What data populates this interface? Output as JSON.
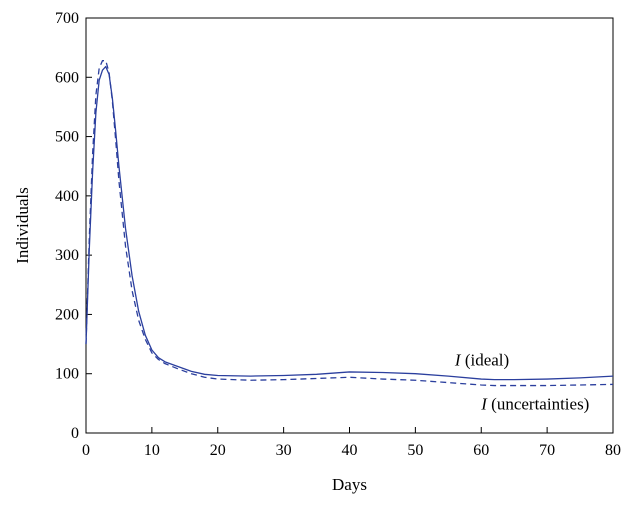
{
  "chart_data": {
    "type": "line",
    "title": "",
    "xlabel": "Days",
    "ylabel": "Individuals",
    "xlim": [
      0,
      80
    ],
    "ylim": [
      0,
      700
    ],
    "xticks": [
      0,
      10,
      20,
      30,
      40,
      50,
      60,
      70,
      80
    ],
    "yticks": [
      0,
      100,
      200,
      300,
      400,
      500,
      600,
      700
    ],
    "grid": false,
    "legend": "none",
    "series": [
      {
        "name": "I (ideal)",
        "style": "solid",
        "color": "#2b3f9e",
        "x": [
          0,
          0.5,
          1,
          1.5,
          2,
          2.5,
          3,
          3.5,
          4,
          4.5,
          5,
          6,
          7,
          8,
          9,
          10,
          11,
          12,
          14,
          16,
          18,
          20,
          25,
          30,
          35,
          40,
          45,
          50,
          55,
          60,
          62,
          65,
          70,
          75,
          80
        ],
        "y": [
          150,
          310,
          440,
          540,
          595,
          612,
          618,
          605,
          565,
          510,
          450,
          345,
          265,
          205,
          165,
          140,
          127,
          120,
          112,
          104,
          99,
          97,
          96,
          97,
          99,
          103,
          102,
          100,
          96,
          91,
          90,
          90,
          91,
          93,
          96
        ]
      },
      {
        "name": "I (uncertainties)",
        "style": "dashed",
        "color": "#2b3f9e",
        "x": [
          0,
          0.5,
          1,
          1.5,
          2,
          2.5,
          3,
          3.5,
          4,
          4.5,
          5,
          6,
          7,
          8,
          9,
          10,
          11,
          12,
          14,
          16,
          18,
          20,
          25,
          30,
          35,
          40,
          45,
          50,
          55,
          60,
          62,
          65,
          70,
          75,
          80
        ],
        "y": [
          150,
          330,
          470,
          570,
          615,
          628,
          628,
          608,
          560,
          495,
          425,
          315,
          240,
          190,
          158,
          135,
          124,
          117,
          108,
          100,
          94,
          91,
          89,
          90,
          92,
          94,
          91,
          89,
          85,
          81,
          80,
          80,
          80,
          81,
          82
        ]
      }
    ],
    "annotations": [
      {
        "italic": "I",
        "text": " (ideal)",
        "x": 56,
        "y": 124
      },
      {
        "italic": "I",
        "text": " (uncertainties)",
        "x": 60,
        "y": 50
      }
    ]
  }
}
